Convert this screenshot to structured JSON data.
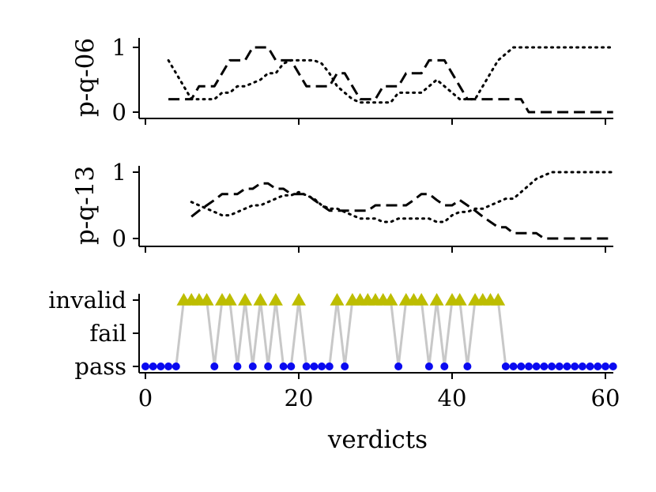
{
  "chart_data": [
    {
      "id": "top",
      "type": "line",
      "ylabel": "p-q-06",
      "ylim": [
        0,
        1
      ],
      "yticks": [
        0,
        1
      ],
      "xlim": [
        -1,
        61
      ],
      "series": [
        {
          "name": "dashed",
          "style": "dashed",
          "x": [
            3,
            4,
            5,
            6,
            7,
            8,
            9,
            10,
            11,
            12,
            13,
            14,
            15,
            16,
            17,
            18,
            19,
            20,
            21,
            22,
            23,
            24,
            25,
            26,
            27,
            28,
            29,
            30,
            31,
            32,
            33,
            34,
            35,
            36,
            37,
            38,
            39,
            40,
            41,
            42,
            43,
            44,
            45,
            46,
            47,
            48,
            49,
            50,
            51,
            52,
            53,
            54,
            55,
            56,
            57,
            58,
            59,
            60,
            61
          ],
          "y": [
            0.2,
            0.2,
            0.2,
            0.2,
            0.4,
            0.4,
            0.4,
            0.6,
            0.8,
            0.8,
            0.8,
            1.0,
            1.0,
            1.0,
            0.8,
            0.8,
            0.8,
            0.6,
            0.4,
            0.4,
            0.4,
            0.4,
            0.6,
            0.6,
            0.4,
            0.2,
            0.2,
            0.2,
            0.4,
            0.4,
            0.4,
            0.6,
            0.6,
            0.6,
            0.8,
            0.8,
            0.8,
            0.6,
            0.4,
            0.2,
            0.2,
            0.2,
            0.2,
            0.2,
            0.2,
            0.2,
            0.2,
            0.0,
            0.0,
            0.0,
            0.0,
            0.0,
            0.0,
            0.0,
            0.0,
            0.0,
            0.0,
            0.0,
            0.0
          ]
        },
        {
          "name": "dotted",
          "style": "dotted",
          "x": [
            3,
            4,
            5,
            6,
            7,
            8,
            9,
            10,
            11,
            12,
            13,
            14,
            15,
            16,
            17,
            18,
            19,
            20,
            21,
            22,
            23,
            24,
            25,
            26,
            27,
            28,
            29,
            30,
            31,
            32,
            33,
            34,
            35,
            36,
            37,
            38,
            39,
            40,
            41,
            42,
            43,
            44,
            45,
            46,
            47,
            48,
            49,
            50,
            51,
            52,
            53,
            54,
            55,
            56,
            57,
            58,
            59,
            60,
            61
          ],
          "y": [
            0.8,
            0.6,
            0.4,
            0.2,
            0.2,
            0.2,
            0.2,
            0.3,
            0.3,
            0.4,
            0.4,
            0.45,
            0.5,
            0.6,
            0.6,
            0.75,
            0.8,
            0.8,
            0.8,
            0.8,
            0.75,
            0.6,
            0.4,
            0.3,
            0.2,
            0.15,
            0.15,
            0.15,
            0.15,
            0.15,
            0.3,
            0.3,
            0.3,
            0.3,
            0.4,
            0.5,
            0.4,
            0.3,
            0.2,
            0.2,
            0.2,
            0.4,
            0.6,
            0.8,
            0.9,
            1.0,
            1.0,
            1.0,
            1.0,
            1.0,
            1.0,
            1.0,
            1.0,
            1.0,
            1.0,
            1.0,
            1.0,
            1.0,
            1.0
          ]
        }
      ]
    },
    {
      "id": "middle",
      "type": "line",
      "ylabel": "p-q-13",
      "ylim": [
        0,
        1
      ],
      "yticks": [
        0,
        1
      ],
      "xlim": [
        -1,
        61
      ],
      "series": [
        {
          "name": "dashed",
          "style": "dashed",
          "x": [
            6,
            7,
            8,
            9,
            10,
            11,
            12,
            13,
            14,
            15,
            16,
            17,
            18,
            19,
            20,
            21,
            22,
            23,
            24,
            25,
            26,
            27,
            28,
            29,
            30,
            31,
            32,
            33,
            34,
            35,
            36,
            37,
            38,
            39,
            40,
            41,
            42,
            43,
            44,
            45,
            46,
            47,
            48,
            49,
            50,
            51,
            52,
            53,
            54,
            55,
            56,
            57,
            58,
            59,
            60,
            61
          ],
          "y": [
            0.33,
            0.42,
            0.5,
            0.58,
            0.67,
            0.67,
            0.67,
            0.75,
            0.75,
            0.83,
            0.83,
            0.75,
            0.75,
            0.67,
            0.67,
            0.67,
            0.58,
            0.5,
            0.42,
            0.42,
            0.42,
            0.42,
            0.42,
            0.42,
            0.5,
            0.5,
            0.5,
            0.5,
            0.5,
            0.58,
            0.67,
            0.67,
            0.58,
            0.5,
            0.5,
            0.58,
            0.5,
            0.42,
            0.33,
            0.25,
            0.17,
            0.17,
            0.08,
            0.08,
            0.08,
            0.08,
            0.0,
            0.0,
            0.0,
            0.0,
            0.0,
            0.0,
            0.0,
            0.0,
            0.0,
            0.0
          ]
        },
        {
          "name": "dotted",
          "style": "dotted",
          "x": [
            6,
            7,
            8,
            9,
            10,
            11,
            12,
            13,
            14,
            15,
            16,
            17,
            18,
            19,
            20,
            21,
            22,
            23,
            24,
            25,
            26,
            27,
            28,
            29,
            30,
            31,
            32,
            33,
            34,
            35,
            36,
            37,
            38,
            39,
            40,
            41,
            42,
            43,
            44,
            45,
            46,
            47,
            48,
            49,
            50,
            51,
            52,
            53,
            54,
            55,
            56,
            57,
            58,
            59,
            60,
            61
          ],
          "y": [
            0.55,
            0.5,
            0.45,
            0.4,
            0.35,
            0.35,
            0.4,
            0.45,
            0.5,
            0.5,
            0.55,
            0.6,
            0.65,
            0.65,
            0.7,
            0.65,
            0.6,
            0.5,
            0.45,
            0.45,
            0.4,
            0.35,
            0.3,
            0.3,
            0.3,
            0.25,
            0.25,
            0.3,
            0.3,
            0.3,
            0.3,
            0.3,
            0.25,
            0.25,
            0.35,
            0.4,
            0.4,
            0.45,
            0.45,
            0.5,
            0.55,
            0.6,
            0.6,
            0.7,
            0.8,
            0.9,
            0.95,
            1.0,
            1.0,
            1.0,
            1.0,
            1.0,
            1.0,
            1.0,
            1.0,
            1.0
          ]
        }
      ]
    },
    {
      "id": "bottom",
      "type": "scatter",
      "xlabel": "verdicts",
      "categories": [
        "pass",
        "fail",
        "invalid"
      ],
      "xlim": [
        -1,
        61
      ],
      "xticks": [
        0,
        20,
        40,
        60
      ],
      "colors": {
        "pass": "#0a0af0",
        "invalid": "#bdbd00",
        "line": "#c8c8c8"
      },
      "verdicts": [
        0,
        0,
        0,
        0,
        0,
        2,
        2,
        2,
        2,
        0,
        2,
        2,
        0,
        2,
        0,
        2,
        0,
        2,
        0,
        0,
        2,
        0,
        0,
        0,
        0,
        2,
        0,
        2,
        2,
        2,
        2,
        2,
        2,
        0,
        2,
        2,
        2,
        0,
        2,
        0,
        2,
        2,
        0,
        2,
        2,
        2,
        2,
        0,
        0,
        0,
        0,
        0,
        0,
        0,
        0,
        0,
        0,
        0,
        0,
        0,
        0,
        0
      ]
    }
  ],
  "colors": {
    "axis": "#000000",
    "series": "#000000"
  }
}
